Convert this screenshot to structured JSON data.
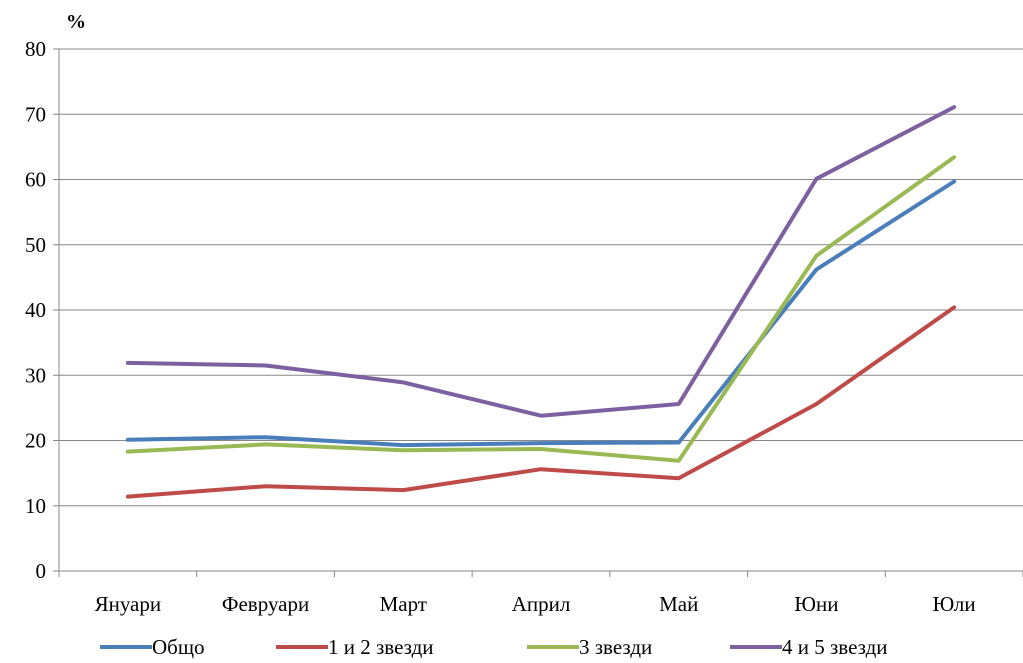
{
  "chart_data": {
    "type": "line",
    "title": "",
    "xlabel": "",
    "ylabel": "%",
    "ylim": [
      0,
      80
    ],
    "yticks": [
      0,
      10,
      20,
      30,
      40,
      50,
      60,
      70,
      80
    ],
    "grid": true,
    "legend_position": "bottom",
    "categories": [
      "Януари",
      "Февруари",
      "Март",
      "Април",
      "Май",
      "Юни",
      "Юли"
    ],
    "series": [
      {
        "name": "Общо",
        "color": "#4a7ebb",
        "values": [
          20.1,
          20.5,
          19.3,
          19.6,
          19.7,
          46.2,
          59.7
        ]
      },
      {
        "name": "1 и 2 звезди",
        "color": "#be4b48",
        "values": [
          11.4,
          13.0,
          12.4,
          15.6,
          14.2,
          25.6,
          40.4
        ]
      },
      {
        "name": "3 звезди",
        "color": "#98b954",
        "values": [
          18.3,
          19.4,
          18.5,
          18.7,
          16.9,
          48.3,
          63.4
        ]
      },
      {
        "name": "4 и 5 звезди",
        "color": "#7d60a0",
        "values": [
          31.9,
          31.5,
          28.9,
          23.8,
          25.6,
          60.1,
          71.1
        ]
      }
    ]
  }
}
